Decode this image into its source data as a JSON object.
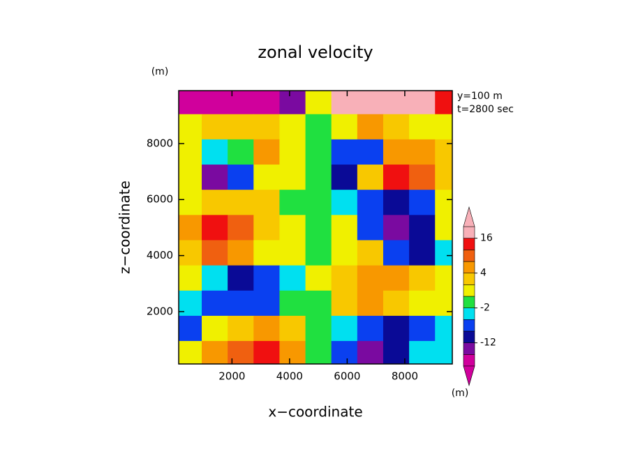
{
  "chart_data": {
    "type": "contour",
    "title": "zonal velocity",
    "xlabel": "x−coordinate",
    "ylabel": "z−coordinate",
    "y_unit": "(m)",
    "x_unit": "(m)",
    "annotations": [
      "y=100 m",
      "t=2800 sec"
    ],
    "xlim": [
      150,
      9650
    ],
    "ylim": [
      130,
      9890
    ],
    "xticks": [
      2000,
      4000,
      6000,
      8000
    ],
    "yticks": [
      2000,
      4000,
      6000,
      8000
    ],
    "x": [
      500,
      1400,
      2300,
      3200,
      4100,
      5000,
      5900,
      6800,
      7700,
      8600,
      9500
    ],
    "y": [
      9500,
      8600,
      7700,
      6800,
      5900,
      5000,
      4100,
      3200,
      2300,
      1400,
      500
    ],
    "z": [
      [
        -18,
        -18,
        -18,
        -18,
        -14,
        0,
        17,
        18,
        18,
        18,
        13
      ],
      [
        1,
        2,
        3,
        3,
        1,
        -1,
        1,
        6,
        3,
        1,
        1
      ],
      [
        1,
        -3,
        -1,
        6,
        1,
        -1,
        -6,
        -6,
        6,
        5,
        2
      ],
      [
        1,
        -14,
        -6,
        1,
        1,
        -1,
        -10,
        3,
        13,
        8,
        2
      ],
      [
        1,
        3,
        3,
        2,
        -1,
        -1,
        -4,
        -7,
        -10,
        -6,
        1
      ],
      [
        5,
        14,
        9,
        3,
        1,
        -1,
        1,
        -7,
        -14,
        -10,
        0.5
      ],
      [
        3,
        8,
        7,
        1,
        1,
        -1,
        1,
        3,
        -7,
        -9,
        -3
      ],
      [
        1,
        -3,
        -9,
        -6,
        -3,
        1,
        3,
        6,
        7,
        3,
        1
      ],
      [
        -3,
        -6,
        -5,
        -6,
        -1,
        -1,
        3,
        5,
        3,
        1,
        1
      ],
      [
        -5,
        1,
        3,
        5,
        2,
        -1,
        -3,
        -5,
        -10,
        -5,
        -3
      ],
      [
        1,
        5,
        8,
        13,
        6,
        -1,
        -6,
        -13,
        -10,
        -4,
        -3
      ]
    ],
    "levels": [
      -16,
      -12,
      -8,
      -4,
      -2,
      0,
      2,
      4,
      8,
      12,
      16
    ],
    "colors": [
      "#d0009c",
      "#7a0aa0",
      "#0a0a96",
      "#0a40f0",
      "#00e0f0",
      "#20e040",
      "#f0f000",
      "#f8c800",
      "#f89800",
      "#f06010",
      "#f01010",
      "#f8b0b8"
    ],
    "colorbar_ticks": [
      -12,
      -2,
      4,
      16
    ]
  }
}
